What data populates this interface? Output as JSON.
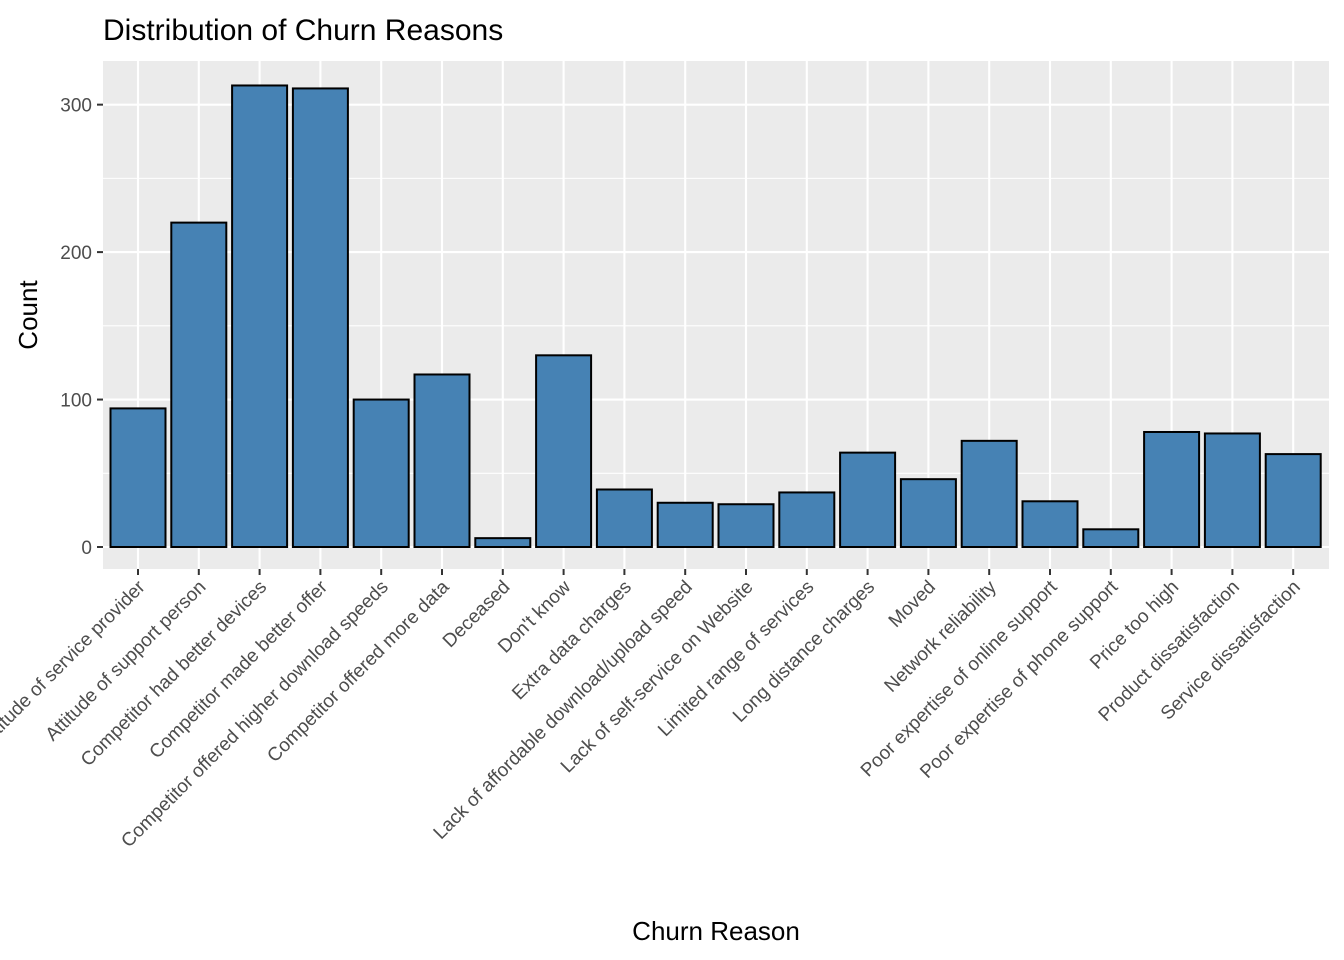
{
  "chart_data": {
    "type": "bar",
    "title": "Distribution of Churn Reasons",
    "xlabel": "Churn Reason",
    "ylabel": "Count",
    "categories": [
      "Attitude of service provider",
      "Attitude of support person",
      "Competitor had better devices",
      "Competitor made better offer",
      "Competitor offered higher download speeds",
      "Competitor offered more data",
      "Deceased",
      "Don't know",
      "Extra data charges",
      "Lack of affordable download/upload speed",
      "Lack of self-service on Website",
      "Limited range of services",
      "Long distance charges",
      "Moved",
      "Network reliability",
      "Poor expertise of online support",
      "Poor expertise of phone support",
      "Price too high",
      "Product dissatisfaction",
      "Service dissatisfaction"
    ],
    "values": [
      94,
      220,
      313,
      311,
      100,
      117,
      6,
      130,
      39,
      30,
      29,
      37,
      64,
      46,
      72,
      31,
      12,
      78,
      77,
      63
    ],
    "ylim": [
      0,
      326
    ],
    "yticks": [
      0,
      100,
      200,
      300
    ],
    "bar_fill": "#4682B4",
    "panel_background": "#EBEBEB",
    "grid": true,
    "legend": "none"
  }
}
